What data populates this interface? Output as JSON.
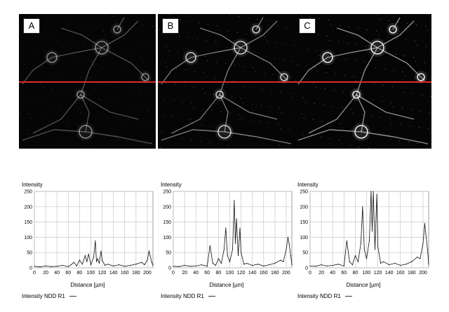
{
  "panels": [
    {
      "label": "A",
      "brightness": 0.55
    },
    {
      "label": "B",
      "brightness": 0.85
    },
    {
      "label": "C",
      "brightness": 1.0
    }
  ],
  "colors": {
    "line_profile": "#e12a2a",
    "trace": "#111111",
    "grid": "#c8c8c8"
  },
  "chart_data": [
    {
      "type": "line",
      "ylabel": "Intensity",
      "xlabel": "Distance [µm]",
      "legend": "Intensity NDD R1",
      "xlim": [
        0,
        210
      ],
      "ylim": [
        0,
        250
      ],
      "xticks": [
        "0",
        "20",
        "40",
        "60",
        "80",
        "100",
        "120",
        "140",
        "160",
        "180",
        "200"
      ],
      "yticks": [
        "0",
        "50",
        "100",
        "150",
        "200",
        "250"
      ],
      "x": [
        0,
        10,
        20,
        30,
        40,
        50,
        60,
        65,
        70,
        75,
        80,
        85,
        90,
        93,
        96,
        100,
        105,
        108,
        110,
        112,
        115,
        118,
        120,
        125,
        130,
        140,
        150,
        160,
        170,
        180,
        190,
        195,
        200,
        203,
        205,
        208,
        210
      ],
      "y": [
        5,
        3,
        6,
        4,
        5,
        8,
        4,
        10,
        18,
        6,
        25,
        12,
        40,
        20,
        45,
        10,
        35,
        88,
        20,
        30,
        15,
        55,
        25,
        8,
        12,
        6,
        10,
        5,
        8,
        12,
        18,
        10,
        25,
        55,
        40,
        18,
        8
      ]
    },
    {
      "type": "line",
      "ylabel": "Intensity",
      "xlabel": "Distance [µm]",
      "legend": "Intensity NDD R1",
      "xlim": [
        0,
        210
      ],
      "ylim": [
        0,
        250
      ],
      "xticks": [
        "0",
        "20",
        "40",
        "60",
        "80",
        "100",
        "120",
        "140",
        "160",
        "180",
        "200"
      ],
      "yticks": [
        "0",
        "50",
        "100",
        "150",
        "200",
        "250"
      ],
      "x": [
        0,
        10,
        20,
        30,
        40,
        50,
        60,
        65,
        70,
        75,
        80,
        85,
        90,
        93,
        96,
        100,
        105,
        108,
        110,
        112,
        115,
        118,
        120,
        125,
        130,
        140,
        150,
        160,
        170,
        180,
        190,
        195,
        200,
        203,
        205,
        208,
        210
      ],
      "y": [
        5,
        4,
        8,
        5,
        6,
        10,
        5,
        72,
        15,
        8,
        30,
        15,
        60,
        130,
        40,
        20,
        60,
        220,
        80,
        160,
        40,
        130,
        50,
        12,
        15,
        8,
        12,
        6,
        10,
        15,
        25,
        20,
        60,
        100,
        80,
        40,
        10
      ]
    },
    {
      "type": "line",
      "ylabel": "Intensity",
      "xlabel": "Distance [µm]",
      "legend": "Intensity NDD R1",
      "xlim": [
        0,
        210
      ],
      "ylim": [
        0,
        250
      ],
      "xticks": [
        "0",
        "20",
        "40",
        "60",
        "80",
        "100",
        "120",
        "140",
        "160",
        "180",
        "200"
      ],
      "yticks": [
        "0",
        "50",
        "100",
        "150",
        "200",
        "250"
      ],
      "x": [
        0,
        10,
        20,
        30,
        40,
        50,
        60,
        65,
        70,
        75,
        80,
        85,
        90,
        93,
        96,
        100,
        105,
        108,
        110,
        112,
        115,
        118,
        120,
        125,
        130,
        140,
        150,
        160,
        170,
        180,
        190,
        195,
        200,
        203,
        205,
        208,
        210
      ],
      "y": [
        6,
        5,
        10,
        6,
        8,
        12,
        6,
        88,
        20,
        10,
        40,
        20,
        80,
        200,
        60,
        30,
        90,
        250,
        120,
        250,
        60,
        240,
        70,
        15,
        20,
        10,
        15,
        8,
        12,
        20,
        35,
        30,
        80,
        145,
        110,
        60,
        12
      ]
    }
  ]
}
